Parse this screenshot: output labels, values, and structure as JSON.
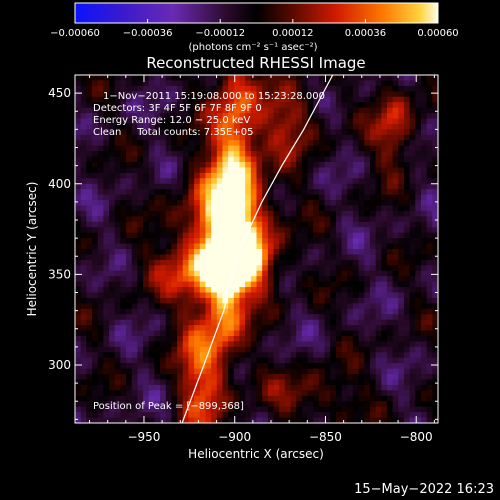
{
  "chart_data": {
    "type": "heatmap",
    "title": "Reconstructed RHESSI Image",
    "xlabel": "Heliocentric X (arcsec)",
    "ylabel": "Heliocentric Y (arcsec)",
    "xlim": [
      -988,
      -788
    ],
    "ylim": [
      268,
      460
    ],
    "x_ticks": [
      -950,
      -900,
      -850,
      -800
    ],
    "y_ticks": [
      300,
      350,
      400,
      450
    ],
    "x_tick_labels": [
      "−950",
      "−900",
      "−850",
      "−800"
    ],
    "y_tick_labels": [
      "300",
      "350",
      "400",
      "450"
    ],
    "colorbar": {
      "range": [
        -0.0006,
        0.0006
      ],
      "ticks": [
        -0.0006,
        -0.00036,
        -0.00012,
        0.00012,
        0.00036,
        0.0006
      ],
      "tick_labels": [
        "−0.00060",
        "−0.00036",
        "−0.00012",
        "0.00012",
        "0.00036",
        "0.00060"
      ],
      "unit_label": "(photons cm⁻² s⁻¹ asec⁻²)"
    },
    "annotations": {
      "time": "1−Nov−2011 15:19:08.000 to 15:23:28.000",
      "detectors": "Detectors: 3F 4F 5F 6F 7F 8F 9F 0",
      "energy": "Energy Range: 12.0 − 25.0 keV",
      "algorithm": "Clean     Total counts: 7.35E+05",
      "peak": "Position of Peak = [−899,368]"
    },
    "peak": [
      -899,
      368
    ],
    "limb_curve": [
      [
        -929,
        268
      ],
      [
        -917,
        300
      ],
      [
        -906,
        330
      ],
      [
        -899,
        360
      ],
      [
        -885,
        390
      ],
      [
        -874,
        410
      ],
      [
        -862,
        430
      ],
      [
        -846,
        460
      ]
    ],
    "sources": [
      {
        "x": -905,
        "y": 376,
        "amp": 1.0,
        "sx": 16,
        "sy": 22
      },
      {
        "x": -895,
        "y": 360,
        "amp": 0.6,
        "sx": 10,
        "sy": 10
      },
      {
        "x": -912,
        "y": 352,
        "amp": 0.6,
        "sx": 22,
        "sy": 11
      },
      {
        "x": -900,
        "y": 418,
        "amp": 0.85,
        "sx": 9,
        "sy": 42
      },
      {
        "x": -905,
        "y": 328,
        "amp": 0.55,
        "sx": 7,
        "sy": 22
      },
      {
        "x": -918,
        "y": 298,
        "amp": 0.7,
        "sx": 9,
        "sy": 28
      },
      {
        "x": -870,
        "y": 435,
        "amp": 0.45,
        "sx": 12,
        "sy": 14
      },
      {
        "x": -812,
        "y": 432,
        "amp": 0.55,
        "sx": 8,
        "sy": 16
      },
      {
        "x": -858,
        "y": 283,
        "amp": 0.35,
        "sx": 18,
        "sy": 10
      }
    ],
    "noise_amp": 0.34,
    "grid": false
  },
  "footer": {
    "timestamp": "15−May−2022 16:23"
  }
}
